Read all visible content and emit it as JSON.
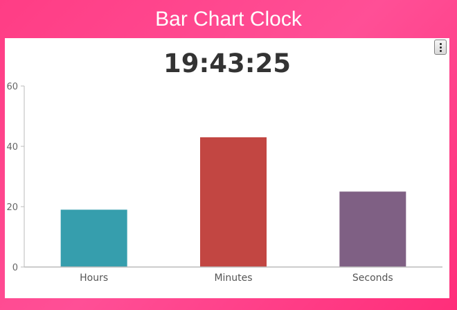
{
  "app": {
    "title": "Bar Chart Clock"
  },
  "toolbar": {
    "menu_icon": "vertical-ellipsis-icon"
  },
  "chart_data": {
    "type": "bar",
    "title": "19:43:25",
    "categories": [
      "Hours",
      "Minutes",
      "Seconds"
    ],
    "values": [
      19,
      43,
      25
    ],
    "colors": [
      "#369EAD",
      "#C24642",
      "#7F6084"
    ],
    "ylim": [
      0,
      60
    ],
    "yticks": [
      0,
      20,
      40,
      60
    ],
    "xlabel": "",
    "ylabel": "",
    "grid": false,
    "legend": "none"
  }
}
